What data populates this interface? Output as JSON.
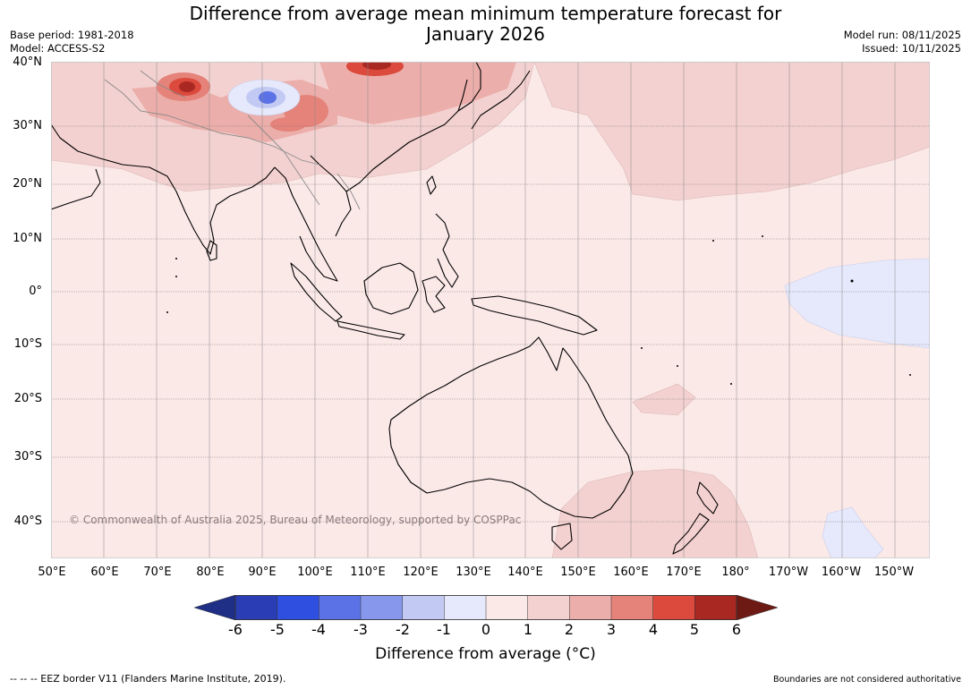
{
  "title_line1": "Difference from average mean minimum temperature forecast for",
  "title_line2": "January 2026",
  "base_period": "Base period: 1981-2018",
  "model": "Model: ACCESS-S2",
  "model_run": "Model run: 08/11/2025",
  "issued": "Issued: 10/11/2025",
  "latitudes": [
    "40°N",
    "30°N",
    "20°N",
    "10°N",
    "0°",
    "10°S",
    "20°S",
    "30°S",
    "40°S"
  ],
  "longitudes": [
    "50°E",
    "60°E",
    "70°E",
    "80°E",
    "90°E",
    "100°E",
    "110°E",
    "120°E",
    "130°E",
    "140°E",
    "150°E",
    "160°E",
    "170°E",
    "180°",
    "170°W",
    "160°W",
    "150°W"
  ],
  "copyright": "© Commonwealth of Australia 2025, Bureau of Meteorology, supported by COSPPac",
  "colorbar": {
    "ticks": [
      "-6",
      "-5",
      "-4",
      "-3",
      "-2",
      "-1",
      "0",
      "1",
      "2",
      "3",
      "4",
      "5",
      "6"
    ],
    "colors": [
      "#1f2f86",
      "#2a3db5",
      "#2f4fe0",
      "#5b72e6",
      "#8798ec",
      "#c2c9f3",
      "#e6e9fb",
      "#fbe9e8",
      "#f3d1d0",
      "#ecaeaa",
      "#e58279",
      "#db4a3c",
      "#a92822",
      "#6e1a14"
    ],
    "label": "Difference from average (°C)"
  },
  "footer_left": "--  --  -- EEZ border V11 (Flanders Marine Institute, 2019).",
  "footer_right": "Boundaries are not considered authoritative",
  "colors": {
    "base": "#fbe9e8",
    "warm1": "#f3d1d0",
    "warm2": "#ecaeaa",
    "warm3": "#e58279",
    "warm4": "#db4a3c",
    "warm5": "#a92822",
    "cool1": "#e6e9fb",
    "cool2": "#c2c9f3",
    "cool3": "#5b72e6"
  }
}
